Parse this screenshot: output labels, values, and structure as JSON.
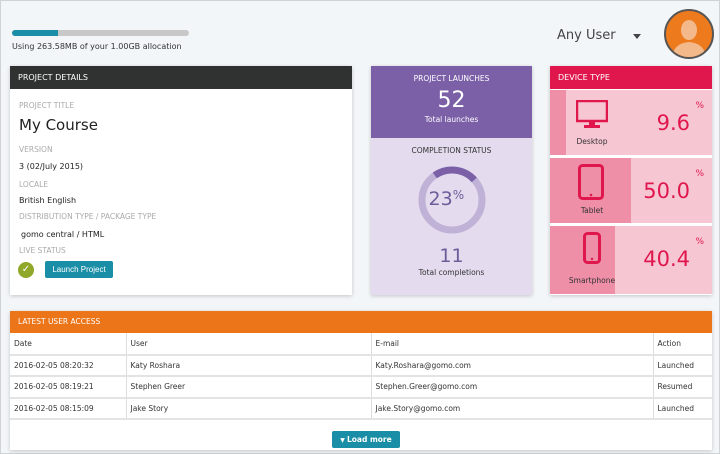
{
  "storage": {
    "text": "Using 263.58MB of your 1.00GB allocation",
    "used_fraction": 0.2574
  },
  "user_filter": {
    "selected": "Any User"
  },
  "project_details": {
    "header": "PROJECT DETAILS",
    "title_label": "PROJECT TITLE",
    "title": "My Course",
    "version_label": "VERSION",
    "version": "3 (02/July 2015)",
    "locale_label": "LOCALE",
    "locale": "British English",
    "distribution_label": "DISTRIBUTION TYPE / PACKAGE TYPE",
    "distribution": "gomo central / HTML",
    "live_status_label": "LIVE STATUS",
    "launch_button": "Launch Project"
  },
  "launches": {
    "header": "PROJECT LAUNCHES",
    "count": "52",
    "count_label": "Total launches"
  },
  "completion": {
    "header": "COMPLETION STATUS",
    "percent": "23",
    "percent_sign": "%",
    "percent_value": 23,
    "count": "11",
    "count_label": "Total completions"
  },
  "device_type": {
    "header": "DEVICE TYPE",
    "items": [
      {
        "name": "Desktop",
        "value": "9.6",
        "percent": 9.6,
        "icon": "desktop-icon"
      },
      {
        "name": "Tablet",
        "value": "50.0",
        "percent": 50.0,
        "icon": "tablet-icon"
      },
      {
        "name": "Smartphone",
        "value": "40.4",
        "percent": 40.4,
        "icon": "smartphone-icon"
      }
    ],
    "percent_sign": "%"
  },
  "latest_access": {
    "header": "LATEST USER ACCESS",
    "columns": [
      "Date",
      "User",
      "E-mail",
      "Action"
    ],
    "rows": [
      [
        "2016-02-05 08:20:32",
        "Katy Roshara",
        "Katy.Roshara@gomo.com",
        "Launched"
      ],
      [
        "2016-02-05 08:19:21",
        "Stephen Greer",
        "Stephen.Greer@gomo.com",
        "Resumed"
      ],
      [
        "2016-02-05 08:15:09",
        "Jake Story",
        "Jake.Story@gomo.com",
        "Launched"
      ]
    ],
    "load_more": "Load more"
  },
  "colors": {
    "teal": "#1a8ea6",
    "purple": "#7b60a8",
    "pink": "#e0174d",
    "orange": "#ec7519",
    "dark": "#303131"
  }
}
